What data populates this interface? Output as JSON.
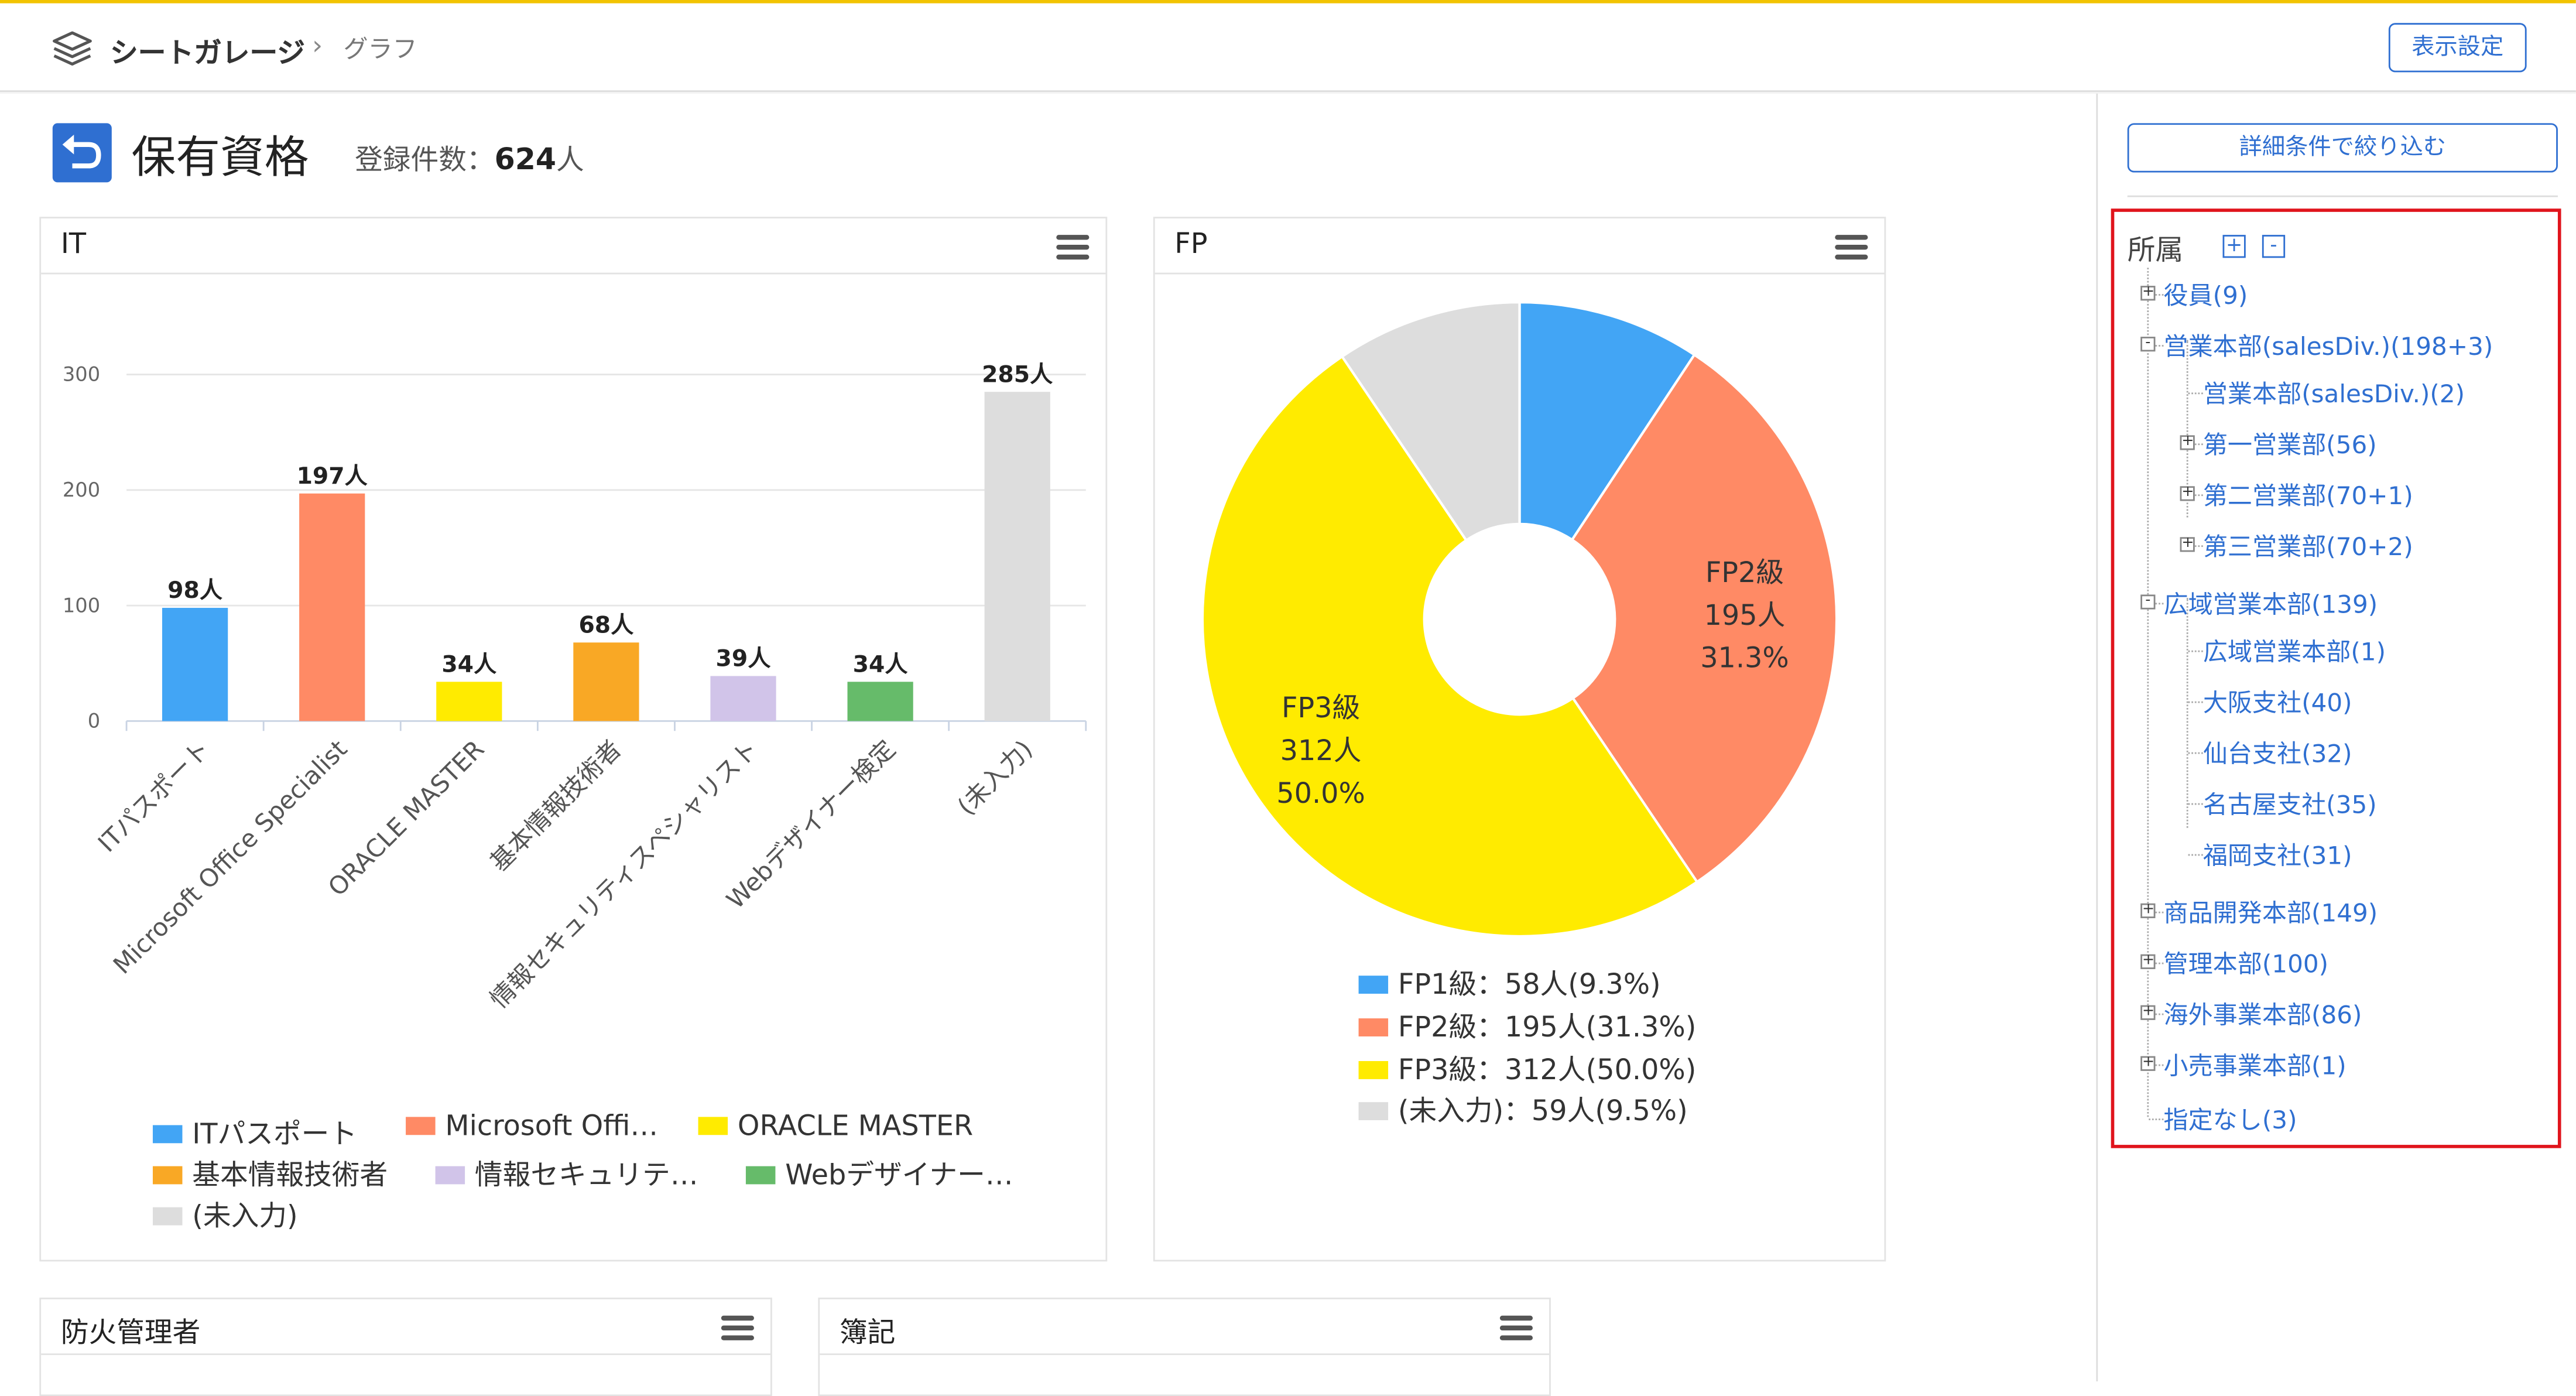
{
  "header": {
    "app_name": "シートガレージ",
    "breadcrumb_sep": "›",
    "breadcrumb_page": "グラフ",
    "display_settings": "表示設定"
  },
  "page": {
    "title": "保有資格",
    "count_label": "登録件数：",
    "count_value": "624",
    "count_unit": "人"
  },
  "colors": {
    "accent": "#2f6fd1",
    "blue": "#42a5f5",
    "orange": "#ff8a65",
    "yellow": "#ffeb00",
    "amber": "#f9a825",
    "lavender": "#d1c4e9",
    "green": "#66bb6a",
    "gray": "#dddddd",
    "highlight_box": "#e0141c"
  },
  "panels": {
    "it": {
      "title": "IT"
    },
    "fp": {
      "title": "FP"
    },
    "fire": {
      "title": "防火管理者"
    },
    "boki": {
      "title": "簿記"
    }
  },
  "chart_data": [
    {
      "type": "bar",
      "title": "IT",
      "categories": [
        "ITパスポート",
        "Microsoft Office Specialist",
        "ORACLE MASTER",
        "基本情報技術者",
        "情報セキュリティスペシャリスト",
        "Webデザイナー検定",
        "(未入力)"
      ],
      "values": [
        98,
        197,
        34,
        68,
        39,
        34,
        285
      ],
      "data_labels": [
        "98人",
        "197人",
        "34人",
        "68人",
        "39人",
        "34人",
        "285人"
      ],
      "colors": [
        "#42a5f5",
        "#ff8a65",
        "#ffeb00",
        "#f9a825",
        "#d1c4e9",
        "#66bb6a",
        "#dddddd"
      ],
      "yticks": [
        "0",
        "100",
        "200",
        "300"
      ],
      "ylim": [
        0,
        320
      ],
      "grid": true,
      "legend": [
        "ITパスポート",
        "Microsoft Offi…",
        "ORACLE MASTER",
        "基本情報技術者",
        "情報セキュリテ…",
        "Webデザイナー…",
        "(未入力)"
      ],
      "legend_placement": "bottom"
    },
    {
      "type": "pie",
      "title": "FP",
      "donut": true,
      "categories": [
        "FP1級",
        "FP2級",
        "FP3級",
        "(未入力)"
      ],
      "values": [
        58,
        195,
        312,
        59
      ],
      "percents": [
        9.3,
        31.3,
        50.0,
        9.5
      ],
      "colors": [
        "#42a5f5",
        "#ff8a65",
        "#ffeb00",
        "#dddddd"
      ],
      "slice_labels": [
        null,
        [
          "FP2級",
          "195人",
          "31.3%"
        ],
        [
          "FP3級",
          "312人",
          "50.0%"
        ],
        null
      ],
      "legend": [
        "FP1級：58人(9.3%)",
        "FP2級：195人(31.3%)",
        "FP3級：312人(50.0%)",
        "(未入力)：59人(9.5%)"
      ],
      "legend_placement": "bottom"
    }
  ],
  "sidebar": {
    "filter_button": "詳細条件で絞り込む",
    "tree_title": "所属",
    "expand_all": "+",
    "collapse_all": "-",
    "tree": [
      {
        "label": "役員(9)",
        "toggle": "+"
      },
      {
        "label": "営業本部(salesDiv.)(198+3)",
        "toggle": "-"
      },
      {
        "label": "営業本部(salesDiv.)(2)",
        "toggle": ""
      },
      {
        "label": "第一営業部(56)",
        "toggle": "+"
      },
      {
        "label": "第二営業部(70+1)",
        "toggle": "+"
      },
      {
        "label": "第三営業部(70+2)",
        "toggle": "+"
      },
      {
        "label": "広域営業本部(139)",
        "toggle": "-"
      },
      {
        "label": "広域営業本部(1)",
        "toggle": ""
      },
      {
        "label": "大阪支社(40)",
        "toggle": ""
      },
      {
        "label": "仙台支社(32)",
        "toggle": ""
      },
      {
        "label": "名古屋支社(35)",
        "toggle": ""
      },
      {
        "label": "福岡支社(31)",
        "toggle": ""
      },
      {
        "label": "商品開発本部(149)",
        "toggle": "+"
      },
      {
        "label": "管理本部(100)",
        "toggle": "+"
      },
      {
        "label": "海外事業本部(86)",
        "toggle": "+"
      },
      {
        "label": "小売事業本部(1)",
        "toggle": "+"
      },
      {
        "label": "指定なし(3)",
        "toggle": ""
      }
    ]
  }
}
